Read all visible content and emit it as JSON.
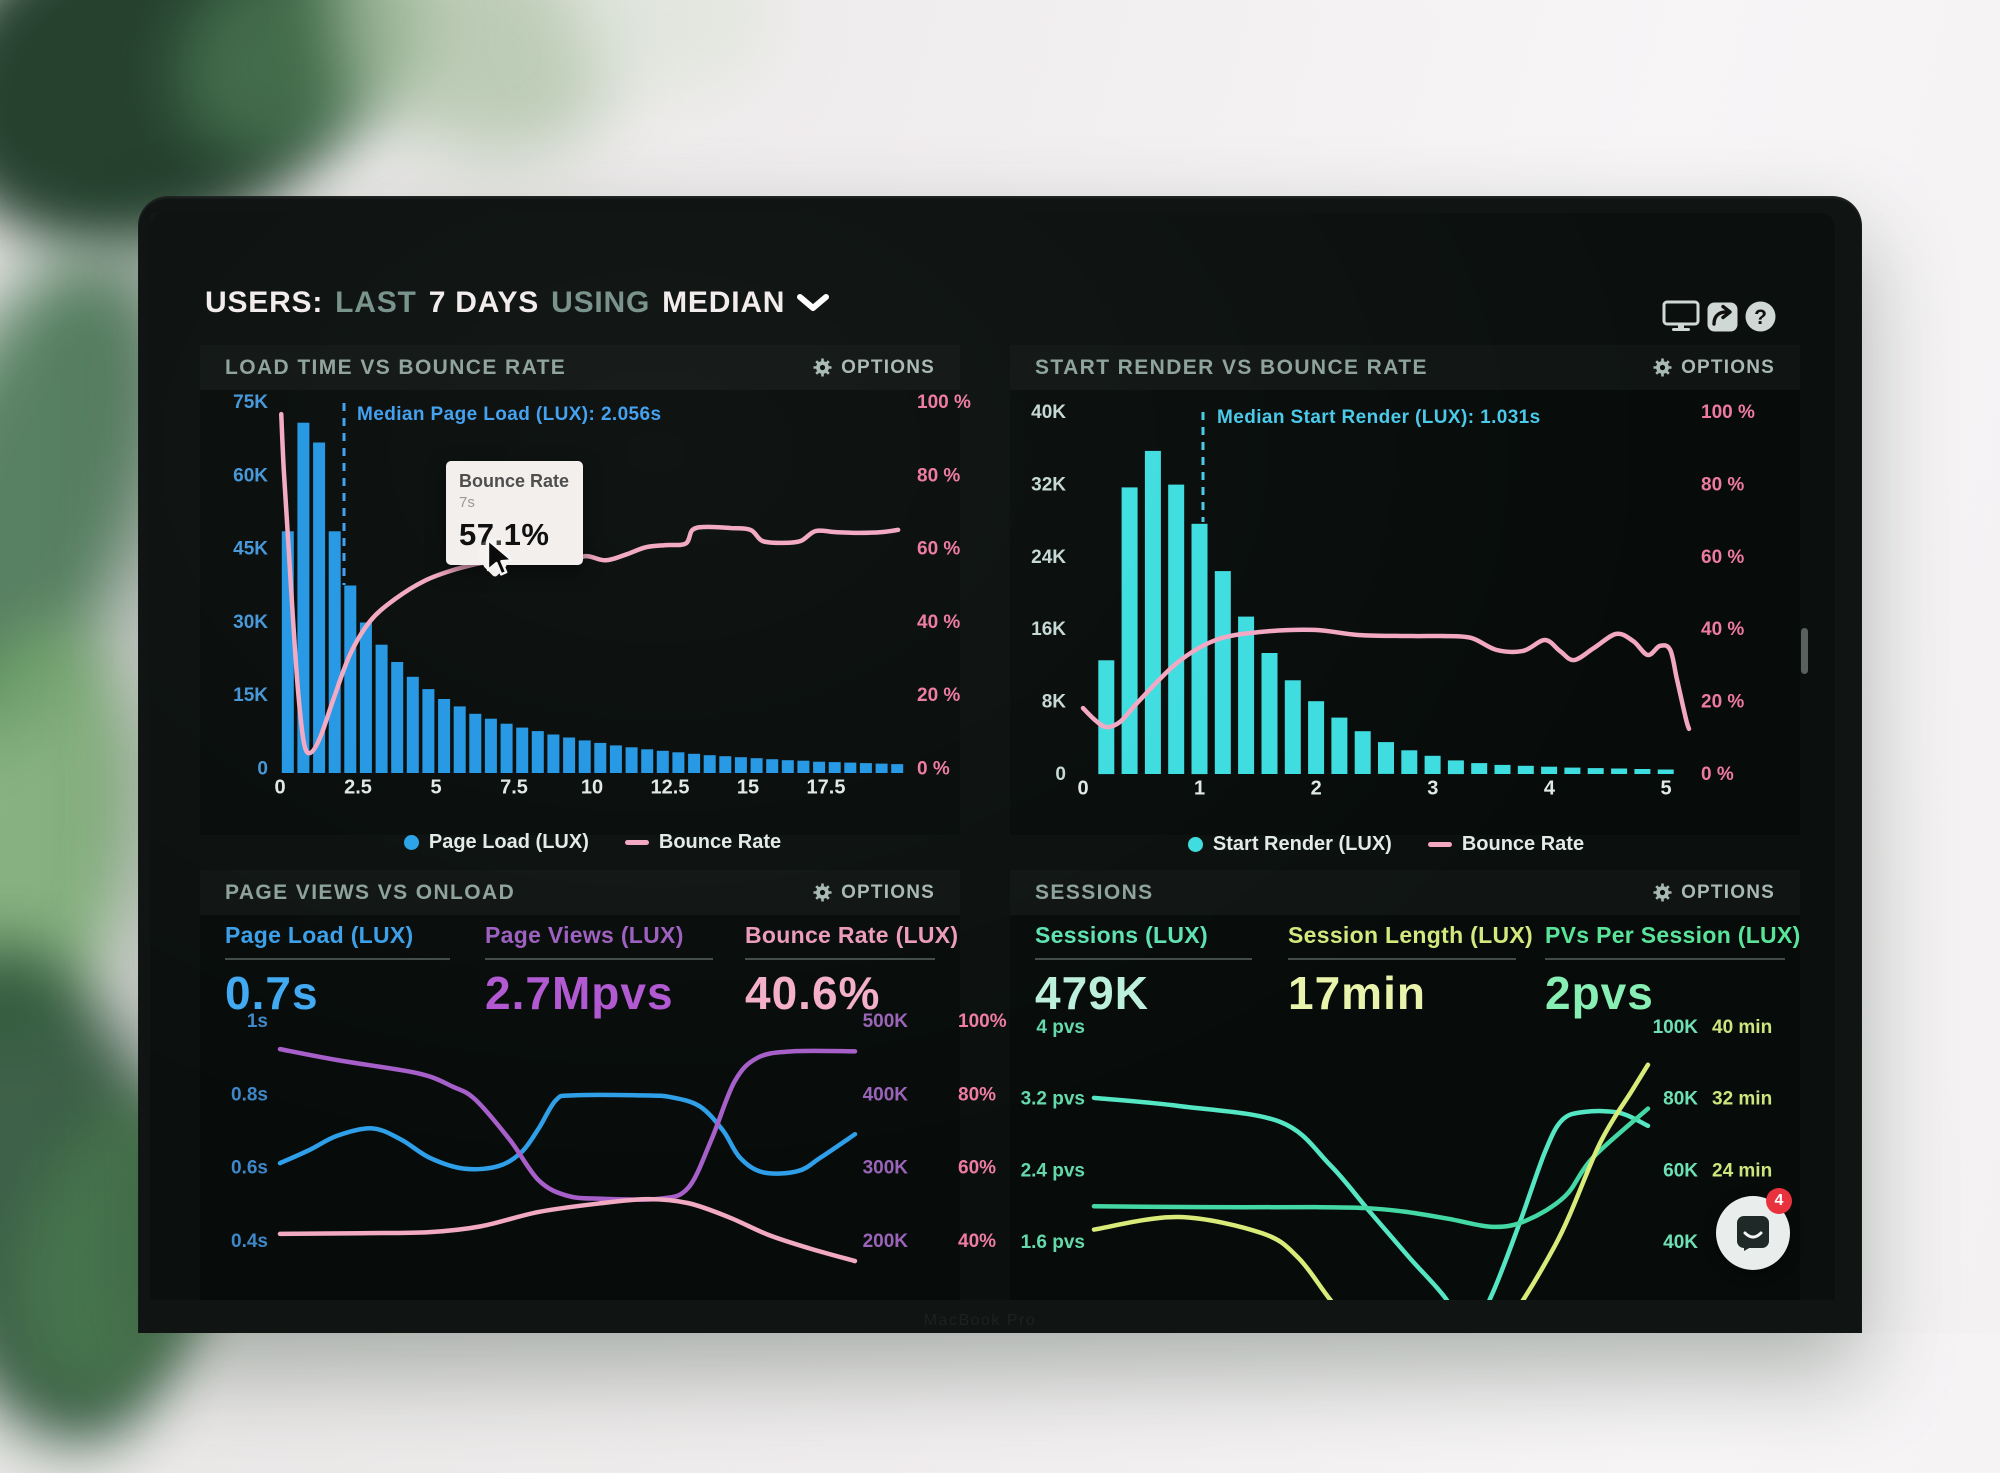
{
  "window": {
    "title_prefix": "USERS:",
    "title_range": "LAST",
    "title_days": "7 DAYS",
    "title_using": "USING",
    "title_metric": "MEDIAN"
  },
  "header_icons": [
    "monitor-icon",
    "share-icon",
    "help-icon"
  ],
  "chat": {
    "badge": "4"
  },
  "footer": {
    "brand": "MacBook Pro"
  },
  "charts": {
    "c1": {
      "title": "LOAD TIME VS BOUNCE RATE",
      "options_label": "OPTIONS",
      "median_label": "Median Page Load (LUX): 2.056s",
      "median_seconds": 2.056,
      "median_color": "#3f9ff0",
      "tooltip": {
        "series": "Bounce Rate",
        "x": "7s",
        "value": "57.1%"
      },
      "y_left": [
        "75K",
        "60K",
        "45K",
        "30K",
        "15K",
        "0"
      ],
      "y_right": [
        "100 %",
        "80 %",
        "60 %",
        "40 %",
        "20 %",
        "0 %"
      ],
      "x_ticks": [
        "0",
        "2.5",
        "5",
        "7.5",
        "10",
        "12.5",
        "15",
        "17.5"
      ],
      "axis_left_color": "#4596d8",
      "axis_right_color": "#ee7aa2",
      "tick_color": "#dfe9e6",
      "legend": [
        {
          "label": "Page Load (LUX)",
          "marker": "dot",
          "color": "#2aa3e8"
        },
        {
          "label": "Bounce Rate",
          "marker": "line",
          "color": "#f3a8c2"
        }
      ],
      "bars": {
        "unit": "K users",
        "vmax": 75,
        "color": "#2497e3",
        "values": [
          49,
          71,
          67,
          49,
          38,
          30.5,
          26,
          22.5,
          19.5,
          17,
          15,
          13.5,
          12,
          11,
          10,
          9.2,
          8.5,
          7.8,
          7.2,
          6.6,
          6.1,
          5.6,
          5.2,
          4.8,
          4.5,
          4.2,
          3.9,
          3.6,
          3.4,
          3.2,
          3,
          2.8,
          2.6,
          2.5,
          2.3,
          2.2,
          2.1,
          2,
          1.9,
          1.8
        ]
      },
      "line": {
        "name": "Bounce Rate",
        "unit": "%",
        "vmin": 0,
        "vmax": 100,
        "color": "#f3a8c2",
        "points": [
          [
            0.002,
            97
          ],
          [
            0.006,
            82
          ],
          [
            0.013,
            63
          ],
          [
            0.021,
            41
          ],
          [
            0.029,
            22
          ],
          [
            0.038,
            8.4
          ],
          [
            0.048,
            5.4
          ],
          [
            0.064,
            9.5
          ],
          [
            0.085,
            19.7
          ],
          [
            0.112,
            32
          ],
          [
            0.144,
            41
          ],
          [
            0.184,
            47
          ],
          [
            0.232,
            52
          ],
          [
            0.28,
            55
          ],
          [
            0.329,
            57
          ],
          [
            0.35,
            57.1
          ],
          [
            0.385,
            58
          ],
          [
            0.425,
            58.6
          ],
          [
            0.457,
            57
          ],
          [
            0.489,
            58.6
          ],
          [
            0.521,
            57.5
          ],
          [
            0.553,
            59
          ],
          [
            0.585,
            61
          ],
          [
            0.617,
            61.6
          ],
          [
            0.649,
            62
          ],
          [
            0.66,
            65.7
          ],
          [
            0.681,
            66.5
          ],
          [
            0.721,
            66.2
          ],
          [
            0.753,
            65.7
          ],
          [
            0.772,
            62.7
          ],
          [
            0.804,
            62.2
          ],
          [
            0.833,
            62.7
          ],
          [
            0.857,
            65.4
          ],
          [
            0.889,
            65.1
          ],
          [
            0.929,
            64.9
          ],
          [
            0.962,
            65.1
          ],
          [
            0.989,
            65.7
          ]
        ]
      }
    },
    "c2": {
      "title": "START RENDER VS BOUNCE RATE",
      "options_label": "OPTIONS",
      "median_label": "Median Start Render (LUX): 1.031s",
      "median_seconds": 1.031,
      "median_color": "#49c9ea",
      "y_left": [
        "40K",
        "32K",
        "24K",
        "16K",
        "8K",
        "0"
      ],
      "y_right": [
        "100 %",
        "80 %",
        "60 %",
        "40 %",
        "20 %",
        "0 %"
      ],
      "x_ticks": [
        "0",
        "1",
        "2",
        "3",
        "4",
        "5"
      ],
      "axis_left_color": "#c5d8d4",
      "axis_right_color": "#ee7aa2",
      "tick_color": "#dfe9e6",
      "legend": [
        {
          "label": "Start Render (LUX)",
          "marker": "dot",
          "color": "#3edde0"
        },
        {
          "label": "Bounce Rate",
          "marker": "line",
          "color": "#f3a8c2"
        }
      ],
      "bars": {
        "unit": "K users",
        "vmax": 40,
        "color": "#3edde0",
        "values": [
          12.5,
          31.5,
          35.5,
          31.8,
          27.5,
          22.3,
          17.3,
          13.3,
          10.3,
          8,
          6.2,
          4.7,
          3.5,
          2.6,
          2,
          1.5,
          1.2,
          1,
          0.9,
          0.8,
          0.7,
          0.65,
          0.6,
          0.55,
          0.5
        ]
      },
      "line": {
        "name": "Bounce Rate",
        "unit": "%",
        "vmin": 0,
        "vmax": 100,
        "color": "#f3a8c2",
        "points": [
          [
            0,
            18.1
          ],
          [
            0.02,
            14.8
          ],
          [
            0.038,
            12.9
          ],
          [
            0.061,
            14.3
          ],
          [
            0.091,
            19.8
          ],
          [
            0.155,
            30.5
          ],
          [
            0.219,
            36.8
          ],
          [
            0.292,
            39
          ],
          [
            0.381,
            39.6
          ],
          [
            0.454,
            38.2
          ],
          [
            0.543,
            37.9
          ],
          [
            0.592,
            37.9
          ],
          [
            0.64,
            37.4
          ],
          [
            0.682,
            34.1
          ],
          [
            0.726,
            33.8
          ],
          [
            0.762,
            36.8
          ],
          [
            0.787,
            33.8
          ],
          [
            0.81,
            31.3
          ],
          [
            0.843,
            34.6
          ],
          [
            0.88,
            38.5
          ],
          [
            0.908,
            36.5
          ],
          [
            0.932,
            32.7
          ],
          [
            0.952,
            35.2
          ],
          [
            0.969,
            34.1
          ],
          [
            0.98,
            26.1
          ],
          [
            0.995,
            15.1
          ],
          [
            1,
            12.4
          ]
        ]
      }
    },
    "c3": {
      "title": "PAGE VIEWS VS ONLOAD",
      "options_label": "OPTIONS",
      "metrics": [
        {
          "label": "Page Load (LUX)",
          "value": "0.7s",
          "label_color": "#3b9fe8",
          "value_color": "#41aaf2"
        },
        {
          "label": "Page Views (LUX)",
          "value": "2.7Mpvs",
          "label_color": "#9d5fc0",
          "value_color": "#b158d2"
        },
        {
          "label": "Bounce Rate (LUX)",
          "value": "40.6%",
          "label_color": "#eb9cba",
          "value_color": "#f4afc8"
        }
      ],
      "rows": [
        {
          "left": "1s",
          "mid": "500K",
          "right": "100%"
        },
        {
          "left": "0.8s",
          "mid": "400K",
          "right": "80%"
        },
        {
          "left": "0.6s",
          "mid": "300K",
          "right": "60%"
        },
        {
          "left": "0.4s",
          "mid": "200K",
          "right": "40%"
        }
      ],
      "left_color": "#3f87c8",
      "mid_color": "#9a64b8",
      "right_color": "#ef7ca4",
      "lines": [
        {
          "name": "Page Load (s)",
          "color": "#2e9fe8",
          "vmin": 0.28,
          "vmax": 1.0,
          "points": [
            [
              0,
              0.615
            ],
            [
              0.05,
              0.65
            ],
            [
              0.1,
              0.69
            ],
            [
              0.16,
              0.71
            ],
            [
              0.21,
              0.68
            ],
            [
              0.26,
              0.63
            ],
            [
              0.32,
              0.6
            ],
            [
              0.38,
              0.607
            ],
            [
              0.42,
              0.645
            ],
            [
              0.45,
              0.71
            ],
            [
              0.48,
              0.787
            ],
            [
              0.51,
              0.8
            ],
            [
              0.63,
              0.8
            ],
            [
              0.68,
              0.795
            ],
            [
              0.73,
              0.77
            ],
            [
              0.77,
              0.705
            ],
            [
              0.8,
              0.63
            ],
            [
              0.84,
              0.59
            ],
            [
              0.9,
              0.593
            ],
            [
              0.94,
              0.63
            ],
            [
              1,
              0.694
            ]
          ]
        },
        {
          "name": "Page Views (K)",
          "color": "#a75fc9",
          "vmin": 140,
          "vmax": 500,
          "points": [
            [
              0,
              463
            ],
            [
              0.1,
              448
            ],
            [
              0.24,
              430
            ],
            [
              0.3,
              412
            ],
            [
              0.34,
              394
            ],
            [
              0.4,
              339
            ],
            [
              0.45,
              284
            ],
            [
              0.5,
              263
            ],
            [
              0.56,
              259
            ],
            [
              0.66,
              259
            ],
            [
              0.71,
              274
            ],
            [
              0.75,
              339
            ],
            [
              0.79,
              418
            ],
            [
              0.83,
              451
            ],
            [
              0.89,
              460
            ],
            [
              1,
              460
            ]
          ]
        },
        {
          "name": "Bounce Rate (%)",
          "color": "#f2a9c2",
          "vmin": 28,
          "vmax": 100,
          "points": [
            [
              0,
              42.2
            ],
            [
              0.14,
              42.4
            ],
            [
              0.26,
              42.7
            ],
            [
              0.35,
              44.3
            ],
            [
              0.45,
              48.2
            ],
            [
              0.56,
              50.6
            ],
            [
              0.64,
              51.7
            ],
            [
              0.71,
              50.6
            ],
            [
              0.78,
              46.8
            ],
            [
              0.85,
              41.9
            ],
            [
              0.92,
              38.3
            ],
            [
              1,
              34.8
            ]
          ]
        }
      ]
    },
    "c4": {
      "title": "SESSIONS",
      "options_label": "OPTIONS",
      "metrics": [
        {
          "label": "Sessions (LUX)",
          "value": "479K",
          "label_color": "#5fe3b2",
          "value_color": "#bdf0dc"
        },
        {
          "label": "Session Length (LUX)",
          "value": "17min",
          "label_color": "#d3e97e",
          "value_color": "#e9f3ab"
        },
        {
          "label": "PVs Per Session (LUX)",
          "value": "2pvs",
          "label_color": "#59e49a",
          "value_color": "#87eeb4"
        }
      ],
      "rows": [
        {
          "left": "4 pvs",
          "mid": "100K",
          "right": "40 min"
        },
        {
          "left": "3.2 pvs",
          "mid": "80K",
          "right": "32 min"
        },
        {
          "left": "2.4 pvs",
          "mid": "60K",
          "right": "24 min"
        },
        {
          "left": "1.6 pvs",
          "mid": "40K",
          "right": ""
        }
      ],
      "left_color": "#64d9ac",
      "mid_color": "#6fe0b5",
      "right_color": "#cce57d",
      "lines": [
        {
          "name": "Sessions (K)",
          "color": "#55e6c3",
          "vmin": 28,
          "vmax": 100,
          "points": [
            [
              0,
              80.5
            ],
            [
              0.155,
              78.2
            ],
            [
              0.336,
              73.8
            ],
            [
              0.426,
              61.8
            ],
            [
              0.498,
              48.7
            ],
            [
              0.57,
              35.8
            ],
            [
              0.634,
              24.7
            ],
            [
              0.675,
              14
            ],
            [
              0.718,
              25.5
            ],
            [
              0.769,
              45.9
            ],
            [
              0.814,
              65.4
            ],
            [
              0.845,
              74.3
            ],
            [
              0.886,
              76.6
            ],
            [
              0.949,
              76.3
            ],
            [
              1,
              72.7
            ]
          ]
        },
        {
          "name": "PVs Per Session (pvs)",
          "color": "#43d8a4",
          "vmin": 1.12,
          "vmax": 4,
          "points": [
            [
              0,
              2.01
            ],
            [
              0.2,
              2.0
            ],
            [
              0.4,
              2.0
            ],
            [
              0.49,
              1.99
            ],
            [
              0.56,
              1.95
            ],
            [
              0.64,
              1.87
            ],
            [
              0.72,
              1.78
            ],
            [
              0.78,
              1.85
            ],
            [
              0.85,
              2.12
            ],
            [
              0.9,
              2.55
            ],
            [
              1,
              3.1
            ]
          ]
        },
        {
          "name": "Session Length (min)",
          "color": "#d9eb79",
          "vmin": 11.2,
          "vmax": 40,
          "points": [
            [
              0,
              17.5
            ],
            [
              0.152,
              18.9
            ],
            [
              0.303,
              17.1
            ],
            [
              0.368,
              14.4
            ],
            [
              0.426,
              9.7
            ],
            [
              0.5,
              4
            ],
            [
              0.62,
              1
            ],
            [
              0.72,
              5
            ],
            [
              0.832,
              15.7
            ],
            [
              0.913,
              27.1
            ],
            [
              0.971,
              33
            ],
            [
              1,
              35.9
            ]
          ]
        }
      ]
    }
  }
}
